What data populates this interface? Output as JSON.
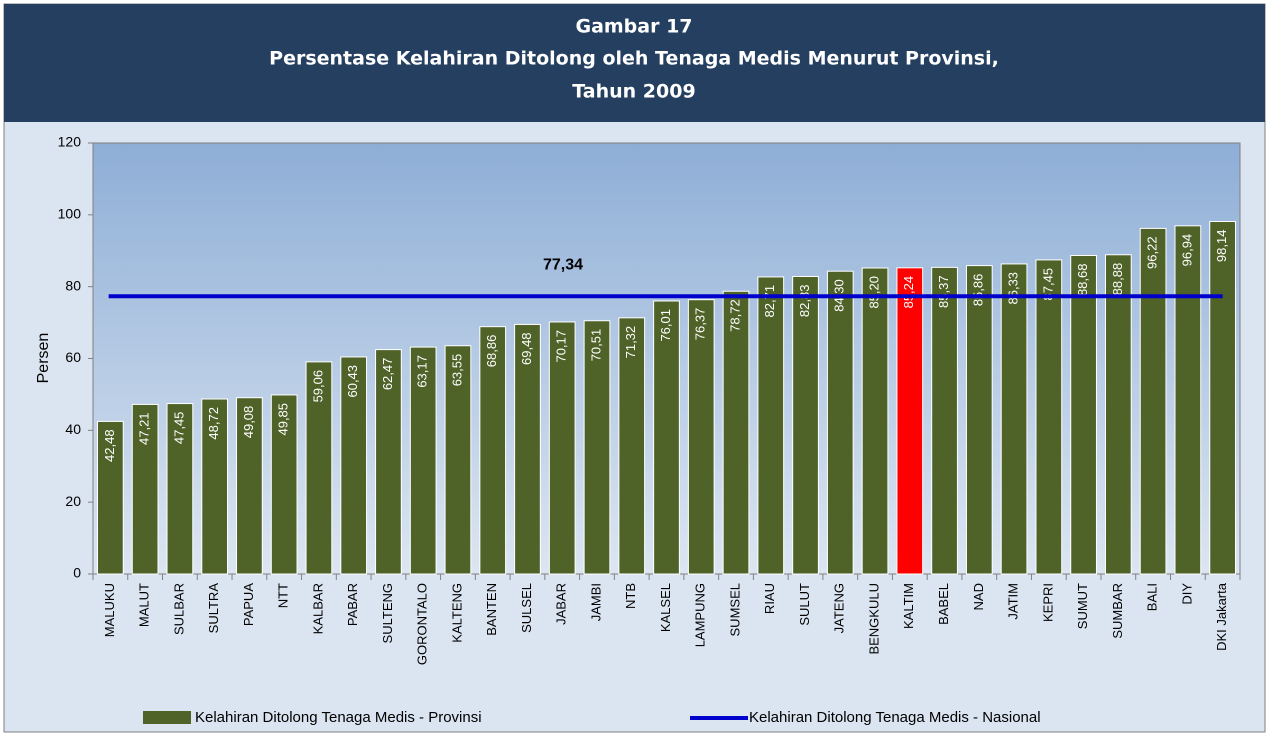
{
  "chart_data": {
    "type": "bar",
    "title": [
      "Gambar 17",
      "Persentase Kelahiran Ditolong oleh Tenaga Medis Menurut Provinsi,",
      "Tahun 2009"
    ],
    "ylabel": "Persen",
    "categories": [
      "MALUKU",
      "MALUT",
      "SULBAR",
      "SULTRA",
      "PAPUA",
      "NTT",
      "KALBAR",
      "PABAR",
      "SULTENG",
      "GORONTALO",
      "KALTENG",
      "BANTEN",
      "SULSEL",
      "JABAR",
      "JAMBI",
      "NTB",
      "KALSEL",
      "LAMPUNG",
      "SUMSEL",
      "RIAU",
      "SULUT",
      "JATENG",
      "BENGKULU",
      "KALTIM",
      "BABEL",
      "NAD",
      "JATIM",
      "KEPRI",
      "SUMUT",
      "SUMBAR",
      "BALI",
      "DIY",
      "DKI Jakarta"
    ],
    "series": [
      {
        "name": "Kelahiran Ditolong Tenaga Medis - Provinsi",
        "color": "#4f6228",
        "values": [
          42.48,
          47.21,
          47.45,
          48.72,
          49.08,
          49.85,
          59.06,
          60.43,
          62.47,
          63.17,
          63.55,
          68.86,
          69.48,
          70.17,
          70.51,
          71.32,
          76.01,
          76.37,
          78.72,
          82.71,
          82.83,
          84.3,
          85.2,
          85.24,
          85.37,
          85.86,
          86.33,
          87.45,
          88.68,
          88.88,
          96.22,
          96.94,
          98.14
        ],
        "value_labels": [
          "42,48",
          "47,21",
          "47,45",
          "48,72",
          "49,08",
          "49,85",
          "59,06",
          "60,43",
          "62,47",
          "63,17",
          "63,55",
          "68,86",
          "69,48",
          "70,17",
          "70,51",
          "71,32",
          "76,01",
          "76,37",
          "78,72",
          "82,71",
          "82,83",
          "84,30",
          "85,20",
          "85,24",
          "85,37",
          "85,86",
          "86,33",
          "87,45",
          "88,68",
          "88,88",
          "96,22",
          "96,94",
          "98,14"
        ],
        "point_colors": [
          "#4f6228",
          "#4f6228",
          "#4f6228",
          "#4f6228",
          "#4f6228",
          "#4f6228",
          "#4f6228",
          "#4f6228",
          "#4f6228",
          "#4f6228",
          "#4f6228",
          "#4f6228",
          "#4f6228",
          "#4f6228",
          "#4f6228",
          "#4f6228",
          "#4f6228",
          "#4f6228",
          "#4f6228",
          "#4f6228",
          "#4f6228",
          "#4f6228",
          "#4f6228",
          "#ff0000",
          "#4f6228",
          "#4f6228",
          "#4f6228",
          "#4f6228",
          "#4f6228",
          "#4f6228",
          "#4f6228",
          "#4f6228",
          "#4f6228"
        ]
      }
    ],
    "line": {
      "name": "Kelahiran Ditolong Tenaga Medis - Nasional",
      "color": "#0000cc",
      "value": 77.34,
      "value_label": "77,34"
    },
    "ylim": [
      0,
      120
    ],
    "yticks": [
      0,
      20,
      40,
      60,
      80,
      100,
      120
    ]
  }
}
